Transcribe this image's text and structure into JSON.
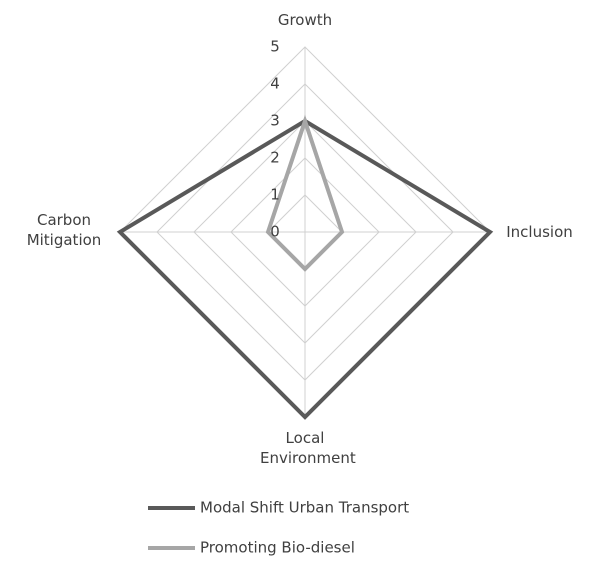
{
  "chart_data": {
    "type": "radar",
    "categories": [
      "Growth",
      "Inclusion",
      "Local Environment",
      "Carbon Mitigation"
    ],
    "ylim": [
      0,
      5
    ],
    "yticks": [
      0,
      1,
      2,
      3,
      4,
      5
    ],
    "grid": true,
    "legend": "bottom",
    "series": [
      {
        "name": "Modal Shift Urban Transport",
        "color": "#595959",
        "values": [
          3,
          5,
          5,
          5
        ]
      },
      {
        "name": "Promoting Bio-diesel",
        "color": "#a6a6a6",
        "values": [
          3,
          1,
          1,
          1
        ]
      }
    ]
  }
}
